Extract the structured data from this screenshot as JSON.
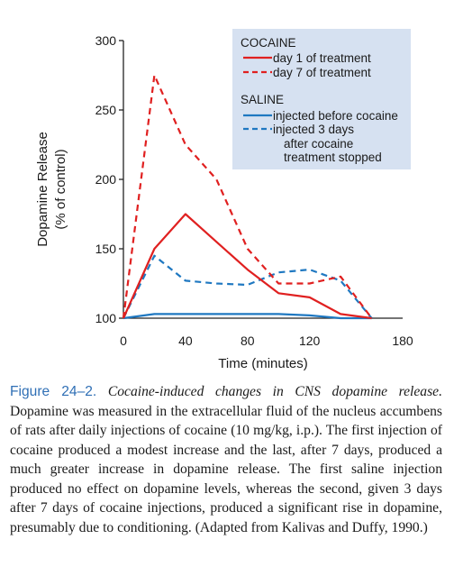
{
  "chart_data": {
    "type": "line",
    "ylabel_line1": "Dopamine Release",
    "ylabel_line2": "(% of control)",
    "xlabel": "Time (minutes)",
    "xlim": [
      0,
      180
    ],
    "ylim": [
      100,
      300
    ],
    "x_ticks": [
      0,
      40,
      80,
      120,
      180
    ],
    "y_ticks": [
      100,
      150,
      200,
      250,
      300
    ],
    "grid": false,
    "legend_placement": "top-right",
    "legend": {
      "group1_title": "COCAINE",
      "group2_title": "SALINE",
      "cocaine_day1": "day 1 of treatment",
      "cocaine_day7": "day 7 of treatment",
      "saline_before": "injected before cocaine",
      "saline_after_l1": "injected 3 days",
      "saline_after_l2": "after cocaine",
      "saline_after_l3": "treatment stopped"
    },
    "colors": {
      "cocaine": "#e02020",
      "saline": "#1f78c1",
      "legend_bg": "#d6e1f1"
    },
    "series": [
      {
        "name": "day 1 of treatment",
        "group": "COCAINE",
        "style": "solid",
        "x": [
          0,
          20,
          40,
          60,
          80,
          100,
          120,
          140,
          160
        ],
        "y": [
          100,
          150,
          175,
          155,
          135,
          118,
          115,
          103,
          100
        ]
      },
      {
        "name": "day 7 of treatment",
        "group": "COCAINE",
        "style": "dashed",
        "x": [
          0,
          20,
          40,
          60,
          80,
          100,
          120,
          140,
          160
        ],
        "y": [
          100,
          275,
          225,
          200,
          150,
          125,
          125,
          130,
          100
        ]
      },
      {
        "name": "injected before cocaine",
        "group": "SALINE",
        "style": "solid",
        "x": [
          0,
          20,
          40,
          60,
          80,
          100,
          120,
          140,
          160
        ],
        "y": [
          100,
          103,
          103,
          103,
          103,
          103,
          102,
          100,
          100
        ]
      },
      {
        "name": "injected 3 days after cocaine treatment stopped",
        "group": "SALINE",
        "style": "dashed",
        "x": [
          0,
          20,
          40,
          60,
          80,
          100,
          120,
          140,
          160
        ],
        "y": [
          100,
          145,
          127,
          125,
          124,
          133,
          135,
          127,
          100
        ]
      }
    ]
  },
  "caption": {
    "label": "Figure 24–2.",
    "title": "Cocaine-induced changes in CNS dopamine release.",
    "body": "Dopamine was measured in the extracellular fluid of the nucleus accumbens of rats after daily injections of cocaine (10 mg/kg, i.p.). The first injection of cocaine produced a modest increase and the last, after 7 days, produced a much greater increase in dopamine release. The first saline injection produced no effect on dopamine levels, whereas the second, given 3 days after 7 days of cocaine injections, produced a significant rise in dopamine, presumably due to conditioning. (Adapted from Kalivas and Duffy, 1990.)"
  }
}
